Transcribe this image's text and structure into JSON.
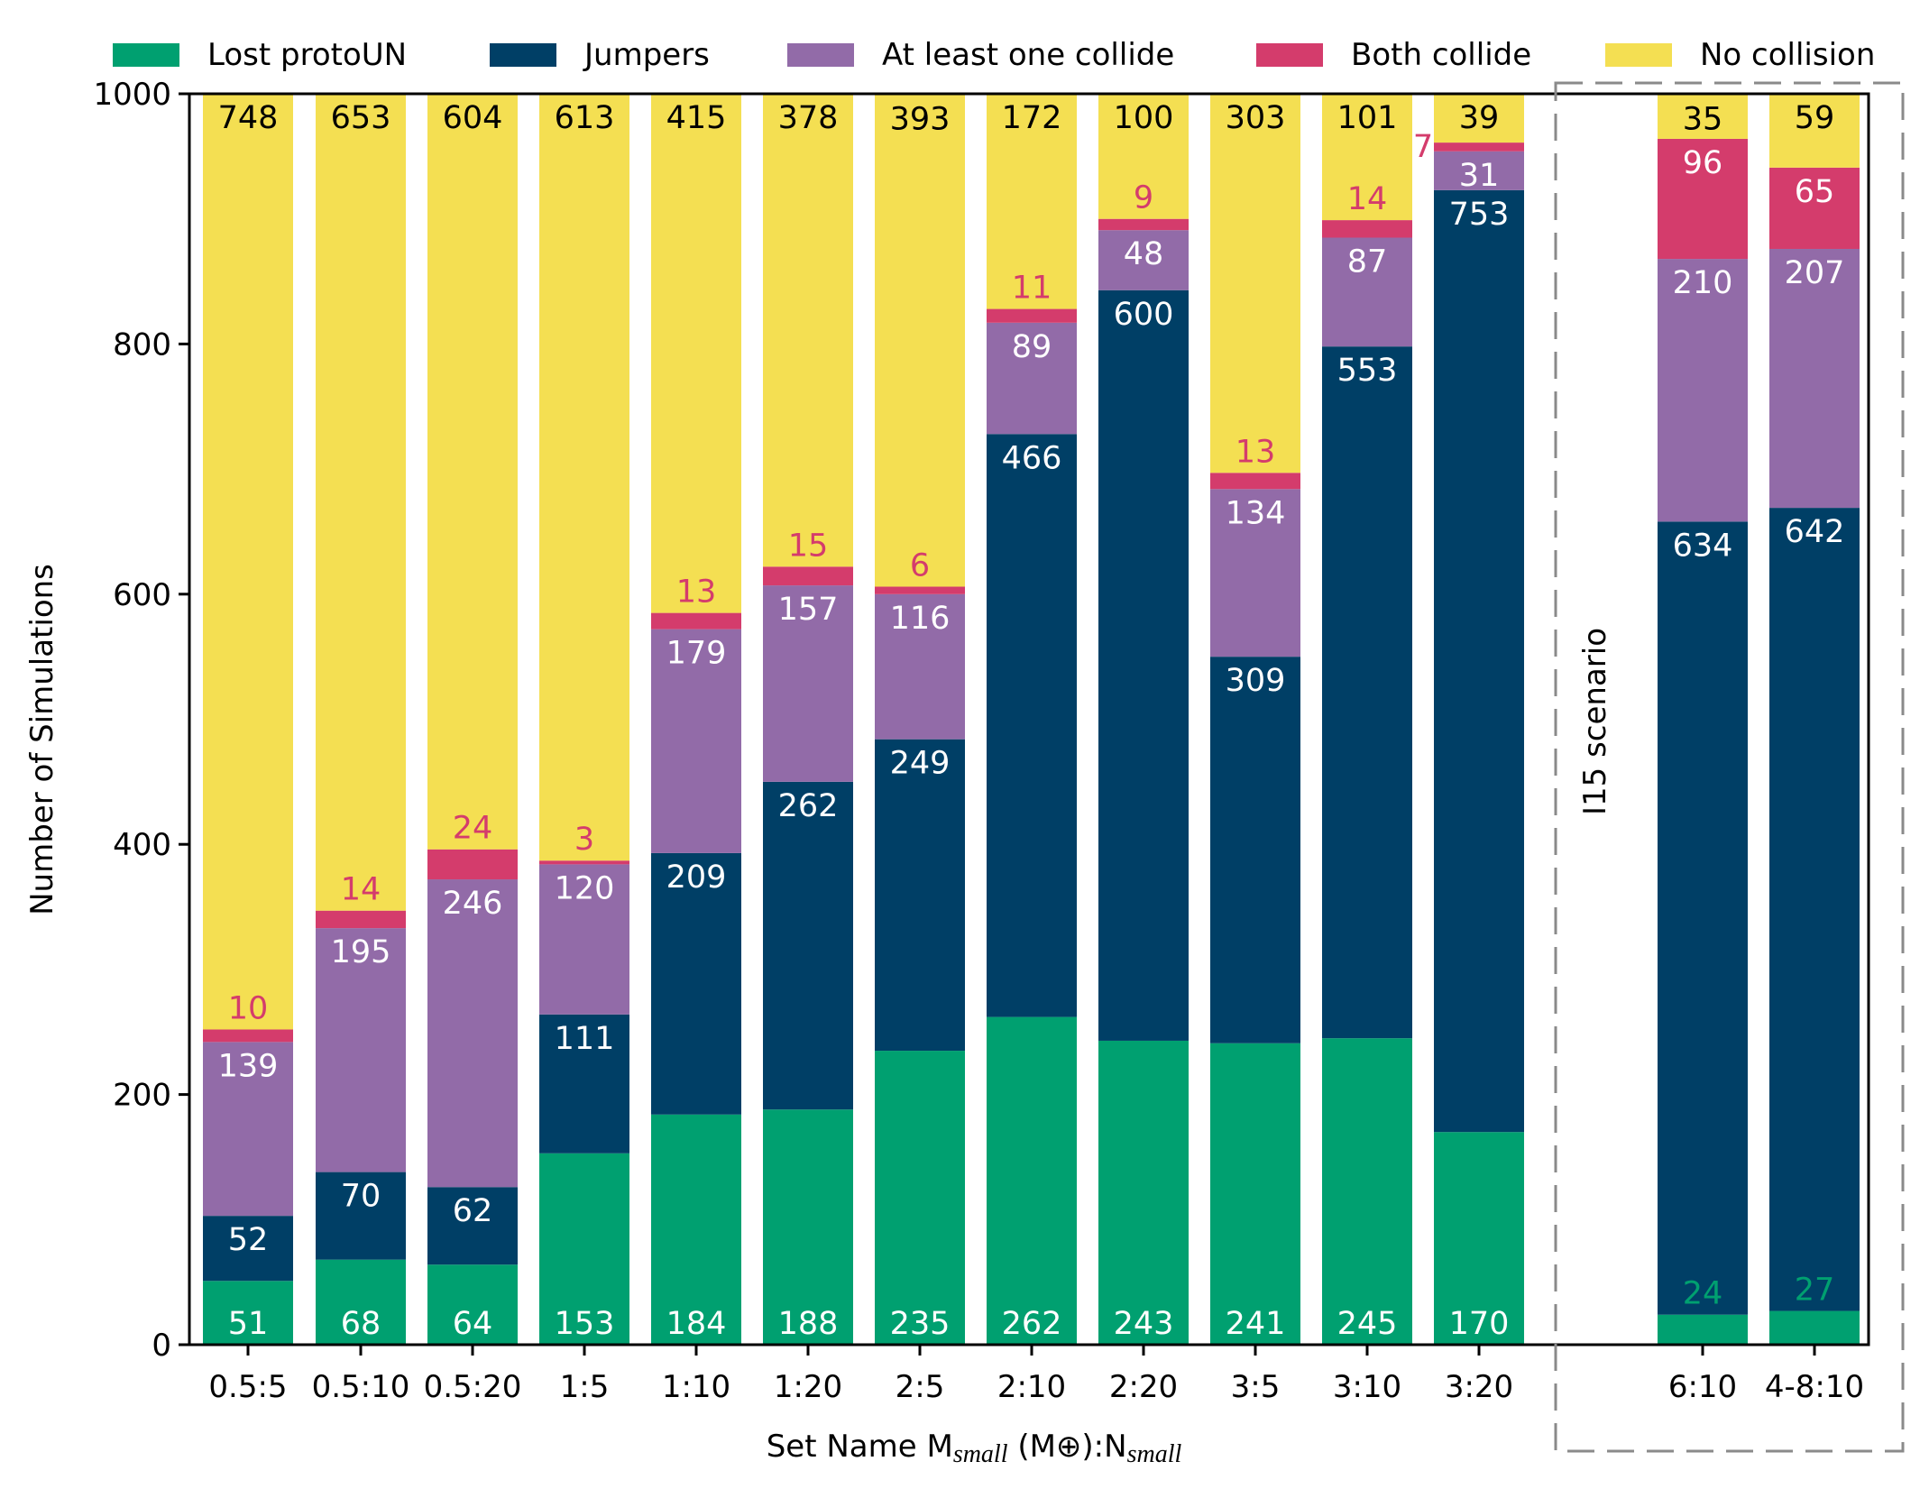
{
  "chart_data": {
    "type": "stacked-bar",
    "ylabel": "Number of Simulations",
    "xlabel_parts": {
      "set_name": "Set Name M",
      "small": "small",
      "unit": "(M",
      "earth": "⊕",
      "close": "):N"
    },
    "ylim": [
      0,
      1000
    ],
    "yticks": [
      0,
      200,
      400,
      600,
      800,
      1000
    ],
    "legend_position": "top",
    "annotation": "I15 scenario",
    "categories": [
      "0.5:5",
      "0.5:10",
      "0.5:20",
      "1:5",
      "1:10",
      "1:20",
      "2:5",
      "2:10",
      "2:20",
      "3:5",
      "3:10",
      "3:20",
      "6:10",
      "4-8:10"
    ],
    "series": [
      {
        "name": "Lost protoUN",
        "color": "#00a070",
        "values": [
          51,
          68,
          64,
          153,
          184,
          188,
          235,
          262,
          243,
          241,
          245,
          170,
          24,
          27
        ]
      },
      {
        "name": "Jumpers",
        "color": "#003f66",
        "values": [
          52,
          70,
          62,
          111,
          209,
          262,
          249,
          466,
          600,
          309,
          553,
          753,
          634,
          642
        ]
      },
      {
        "name": "At least one collide",
        "color": "#926ba8",
        "values": [
          139,
          195,
          246,
          120,
          179,
          157,
          116,
          89,
          48,
          134,
          87,
          31,
          210,
          207
        ]
      },
      {
        "name": "Both collide",
        "color": "#d43c6c",
        "values": [
          10,
          14,
          24,
          3,
          13,
          15,
          6,
          11,
          9,
          13,
          14,
          7,
          96,
          65
        ]
      },
      {
        "name": "No collision",
        "color": "#f4df52",
        "values": [
          748,
          653,
          604,
          613,
          415,
          378,
          393,
          172,
          100,
          303,
          101,
          39,
          35,
          59
        ]
      }
    ]
  }
}
